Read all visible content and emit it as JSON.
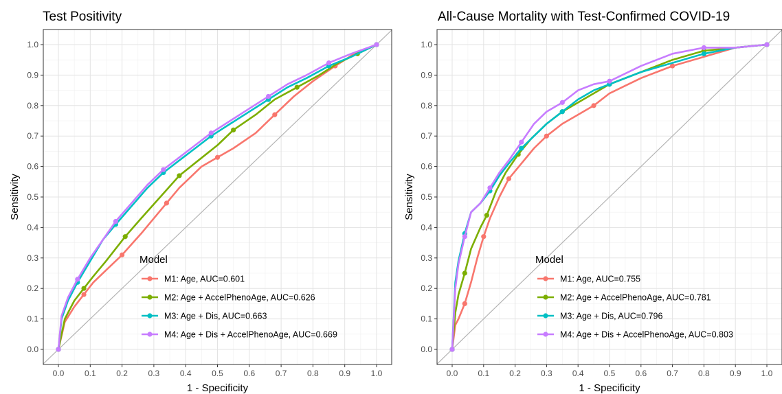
{
  "chart_data": [
    {
      "type": "line",
      "title": "Test Positivity",
      "xlabel": "1 - Specificity",
      "ylabel": "Sensitivity",
      "xlim": [
        0,
        1
      ],
      "ylim": [
        0,
        1
      ],
      "x_ticks": [
        "0.0",
        "0.1",
        "0.2",
        "0.3",
        "0.4",
        "0.5",
        "0.6",
        "0.7",
        "0.8",
        "0.9",
        "1.0"
      ],
      "y_ticks": [
        "0.0",
        "0.1",
        "0.2",
        "0.3",
        "0.4",
        "0.5",
        "0.6",
        "0.7",
        "0.8",
        "0.9",
        "1.0"
      ],
      "grid": true,
      "diagonal_reference": true,
      "legend_title": "Model",
      "legend_position": "bottom-center",
      "series": [
        {
          "name": "M1: Age, AUC=0.601",
          "color": "#F8766D",
          "x": [
            0,
            0.02,
            0.05,
            0.08,
            0.11,
            0.15,
            0.2,
            0.26,
            0.3,
            0.34,
            0.38,
            0.45,
            0.5,
            0.55,
            0.62,
            0.68,
            0.74,
            0.8,
            0.87,
            0.93,
            1.0
          ],
          "y": [
            0,
            0.09,
            0.14,
            0.18,
            0.22,
            0.26,
            0.31,
            0.38,
            0.43,
            0.48,
            0.53,
            0.6,
            0.63,
            0.66,
            0.71,
            0.77,
            0.83,
            0.88,
            0.93,
            0.97,
            1.0
          ]
        },
        {
          "name": "M2: Age + AccelPhenoAge, AUC=0.626",
          "color": "#7CAE00",
          "x": [
            0,
            0.02,
            0.05,
            0.08,
            0.11,
            0.15,
            0.21,
            0.26,
            0.32,
            0.38,
            0.44,
            0.5,
            0.55,
            0.62,
            0.68,
            0.75,
            0.82,
            0.88,
            0.94,
            1.0
          ],
          "y": [
            0,
            0.1,
            0.16,
            0.2,
            0.24,
            0.29,
            0.37,
            0.43,
            0.5,
            0.57,
            0.62,
            0.67,
            0.72,
            0.77,
            0.82,
            0.86,
            0.9,
            0.94,
            0.97,
            1.0
          ]
        },
        {
          "name": "M3: Age + Dis, AUC=0.663",
          "color": "#00BFC4",
          "x": [
            0,
            0.01,
            0.03,
            0.06,
            0.1,
            0.14,
            0.18,
            0.23,
            0.28,
            0.33,
            0.38,
            0.43,
            0.48,
            0.54,
            0.6,
            0.66,
            0.72,
            0.78,
            0.85,
            0.92,
            1.0
          ],
          "y": [
            0,
            0.1,
            0.16,
            0.22,
            0.29,
            0.36,
            0.41,
            0.47,
            0.53,
            0.58,
            0.62,
            0.66,
            0.7,
            0.74,
            0.78,
            0.82,
            0.86,
            0.89,
            0.93,
            0.96,
            1.0
          ]
        },
        {
          "name": "M4: Age + Dis + AccelPhenoAge, AUC=0.669",
          "color": "#C77CFF",
          "x": [
            0,
            0.01,
            0.03,
            0.06,
            0.1,
            0.14,
            0.18,
            0.23,
            0.28,
            0.33,
            0.38,
            0.43,
            0.48,
            0.54,
            0.6,
            0.66,
            0.72,
            0.78,
            0.85,
            0.92,
            1.0
          ],
          "y": [
            0,
            0.11,
            0.17,
            0.23,
            0.3,
            0.36,
            0.42,
            0.48,
            0.54,
            0.59,
            0.63,
            0.67,
            0.71,
            0.75,
            0.79,
            0.83,
            0.87,
            0.9,
            0.94,
            0.97,
            1.0
          ]
        }
      ]
    },
    {
      "type": "line",
      "title": "All-Cause Mortality with Test-Confirmed COVID-19",
      "xlabel": "1 - Specificity",
      "ylabel": "Sensitivity",
      "xlim": [
        0,
        1
      ],
      "ylim": [
        0,
        1
      ],
      "x_ticks": [
        "0.0",
        "0.1",
        "0.2",
        "0.3",
        "0.4",
        "0.5",
        "0.6",
        "0.7",
        "0.8",
        "0.9",
        "1.0"
      ],
      "y_ticks": [
        "0.0",
        "0.1",
        "0.2",
        "0.3",
        "0.4",
        "0.5",
        "0.6",
        "0.7",
        "0.8",
        "0.9",
        "1.0"
      ],
      "grid": true,
      "diagonal_reference": true,
      "legend_title": "Model",
      "legend_position": "bottom-center",
      "series": [
        {
          "name": "M1: Age, AUC=0.755",
          "color": "#F8766D",
          "x": [
            0,
            0.01,
            0.02,
            0.04,
            0.06,
            0.08,
            0.1,
            0.12,
            0.15,
            0.18,
            0.22,
            0.26,
            0.3,
            0.35,
            0.4,
            0.45,
            0.5,
            0.6,
            0.7,
            0.8,
            0.9,
            1.0
          ],
          "y": [
            0,
            0.08,
            0.1,
            0.15,
            0.22,
            0.3,
            0.37,
            0.43,
            0.5,
            0.56,
            0.61,
            0.66,
            0.7,
            0.74,
            0.77,
            0.8,
            0.84,
            0.89,
            0.93,
            0.96,
            0.99,
            1.0
          ]
        },
        {
          "name": "M2: Age + AccelPhenoAge, AUC=0.781",
          "color": "#7CAE00",
          "x": [
            0,
            0.01,
            0.02,
            0.04,
            0.06,
            0.09,
            0.11,
            0.14,
            0.17,
            0.21,
            0.25,
            0.3,
            0.35,
            0.4,
            0.45,
            0.5,
            0.6,
            0.7,
            0.8,
            0.9,
            1.0
          ],
          "y": [
            0,
            0.12,
            0.18,
            0.25,
            0.33,
            0.4,
            0.44,
            0.52,
            0.58,
            0.64,
            0.69,
            0.74,
            0.78,
            0.81,
            0.84,
            0.87,
            0.91,
            0.95,
            0.98,
            0.99,
            1.0
          ]
        },
        {
          "name": "M3: Age + Dis, AUC=0.796",
          "color": "#00BFC4",
          "x": [
            0,
            0.01,
            0.02,
            0.04,
            0.06,
            0.09,
            0.12,
            0.15,
            0.18,
            0.22,
            0.26,
            0.3,
            0.35,
            0.4,
            0.45,
            0.5,
            0.6,
            0.7,
            0.8,
            0.9,
            1.0
          ],
          "y": [
            0,
            0.22,
            0.29,
            0.38,
            0.45,
            0.48,
            0.52,
            0.57,
            0.61,
            0.66,
            0.7,
            0.74,
            0.78,
            0.82,
            0.85,
            0.87,
            0.91,
            0.94,
            0.97,
            0.99,
            1.0
          ]
        },
        {
          "name": "M4: Age + Dis + AccelPhenoAge, AUC=0.803",
          "color": "#C77CFF",
          "x": [
            0,
            0.01,
            0.02,
            0.04,
            0.06,
            0.09,
            0.12,
            0.15,
            0.18,
            0.22,
            0.26,
            0.3,
            0.35,
            0.4,
            0.45,
            0.5,
            0.6,
            0.7,
            0.8,
            0.9,
            1.0
          ],
          "y": [
            0,
            0.2,
            0.28,
            0.37,
            0.45,
            0.48,
            0.53,
            0.58,
            0.62,
            0.68,
            0.74,
            0.78,
            0.81,
            0.85,
            0.87,
            0.88,
            0.93,
            0.97,
            0.99,
            0.99,
            1.0
          ]
        }
      ]
    }
  ]
}
